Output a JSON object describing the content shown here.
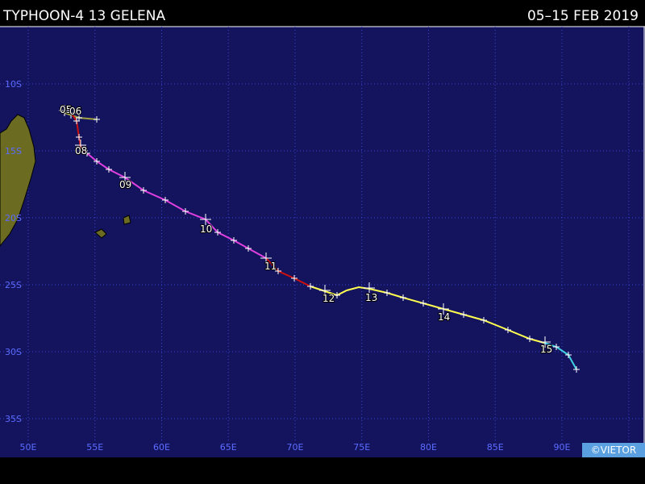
{
  "header": {
    "title": "TYPHOON-4 13 GELENA",
    "date": "05–15 FEB 2019"
  },
  "lat_labels": [
    "10S",
    "15S",
    "20S",
    "25S",
    "30S",
    "35S"
  ],
  "lon_labels": [
    "50E",
    "55E",
    "60E",
    "65E",
    "70E",
    "75E",
    "80E",
    "85E",
    "90E"
  ],
  "day_labels": [
    "05",
    "06",
    "08",
    "09",
    "10",
    "11",
    "12",
    "13",
    "14",
    "15"
  ],
  "copyright": "©VIETOR"
}
